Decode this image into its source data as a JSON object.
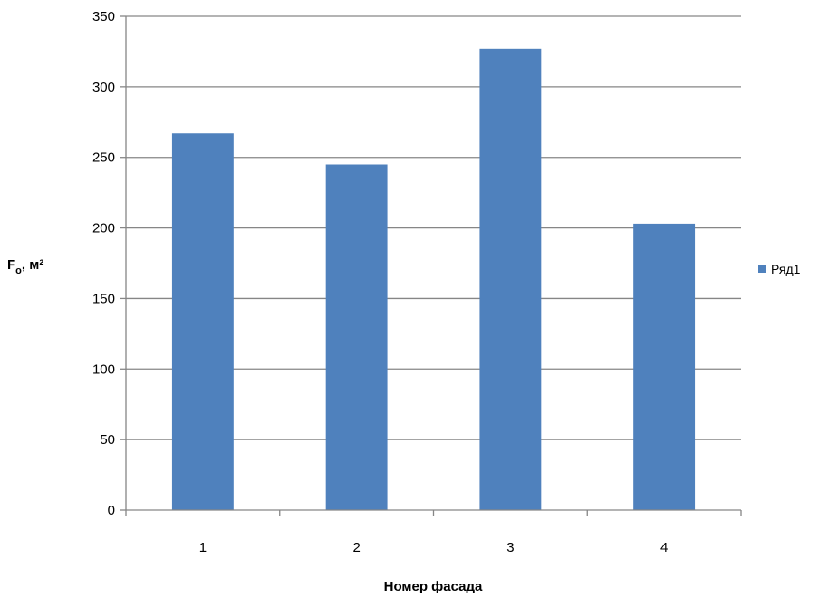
{
  "chart_data": {
    "type": "bar",
    "title": "",
    "xlabel": "Номер фасада",
    "ylabel_main": "F",
    "ylabel_sub": "о",
    "ylabel_unit": ", м²",
    "categories": [
      "1",
      "2",
      "3",
      "4"
    ],
    "series": [
      {
        "name": "Ряд1",
        "values": [
          267,
          245,
          327,
          203
        ],
        "color": "#4f81bd"
      }
    ],
    "ylim": [
      0,
      350
    ],
    "yticks": [
      "0",
      "50",
      "100",
      "150",
      "200",
      "250",
      "300",
      "350"
    ],
    "grid": true,
    "legend": "right"
  }
}
